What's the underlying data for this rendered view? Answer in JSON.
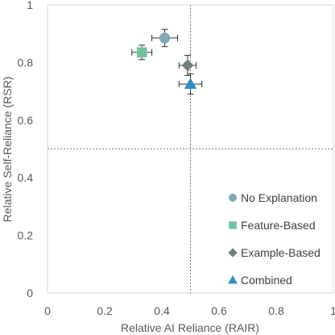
{
  "chart_data": {
    "type": "scatter",
    "xlabel": "Relative AI Reliance (RAIR)",
    "ylabel": "Relative Self-Reliance (RSR)",
    "xlim": [
      0,
      1
    ],
    "ylim": [
      0,
      1
    ],
    "xticks": [
      "0",
      "0.2",
      "0.4",
      "0.6",
      "0.8",
      "1"
    ],
    "yticks": [
      "0",
      "0.2",
      "0.4",
      "0.6",
      "0.8",
      "1"
    ],
    "xtick_values": [
      0,
      0.2,
      0.4,
      0.6,
      0.8,
      1
    ],
    "ytick_values": [
      0,
      0.2,
      0.4,
      0.6,
      0.8,
      1
    ],
    "reference_lines": {
      "x": 0.5,
      "y": 0.5,
      "style": "dashed"
    },
    "grid": false,
    "legend_position": "bottom-right",
    "series": [
      {
        "name": "No Explanation",
        "marker": "circle",
        "color": "#7FA9B3",
        "x": 0.41,
        "y": 0.885,
        "xerr": 0.045,
        "yerr": 0.03
      },
      {
        "name": "Feature-Based",
        "marker": "square",
        "color": "#72C2A0",
        "x": 0.33,
        "y": 0.835,
        "xerr": 0.035,
        "yerr": 0.025
      },
      {
        "name": "Example-Based",
        "marker": "diamond",
        "color": "#6E7F7C",
        "x": 0.49,
        "y": 0.79,
        "xerr": 0.03,
        "yerr": 0.035
      },
      {
        "name": "Combined",
        "marker": "triangle",
        "color": "#2E8FC4",
        "x": 0.5,
        "y": 0.725,
        "xerr": 0.04,
        "yerr": 0.035
      }
    ]
  }
}
